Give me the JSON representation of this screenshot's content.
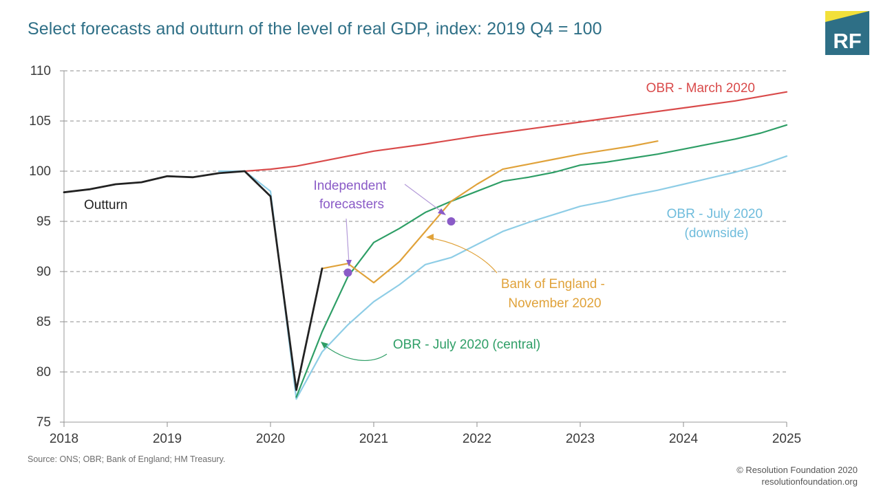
{
  "header": {
    "title": "Select forecasts and outturn of the level of real GDP, index: 2019 Q4 = 100",
    "logo_text": "RF"
  },
  "footer": {
    "source": "Source: ONS; OBR; Bank of England; HM Treasury.",
    "copyright_line1": "© Resolution Foundation 2020",
    "copyright_line2": "resolutionfoundation.org"
  },
  "colors": {
    "title": "#2e6f86",
    "logo_bg": "#2e6f86",
    "logo_accent": "#f2e03a"
  },
  "chart_data": {
    "type": "line",
    "title": "Select forecasts and outturn of the level of real GDP, index: 2019 Q4 = 100",
    "xlabel": "",
    "ylabel": "",
    "xlim": [
      2018,
      2025
    ],
    "ylim": [
      75,
      110
    ],
    "x_ticks": [
      "2018",
      "2019",
      "2020",
      "2021",
      "2022",
      "2023",
      "2024",
      "2025"
    ],
    "y_ticks": [
      "75",
      "80",
      "85",
      "90",
      "95",
      "100",
      "105",
      "110"
    ],
    "grid": "horizontal-dashed",
    "legend": "none (direct labels)",
    "series": [
      {
        "key": "obr-march",
        "name": "OBR - March 2020",
        "color": "#d94a4a",
        "points": [
          [
            2019.75,
            100
          ],
          [
            2020,
            100.2
          ],
          [
            2020.25,
            100.5
          ],
          [
            2020.5,
            101
          ],
          [
            2020.75,
            101.5
          ],
          [
            2021,
            102
          ],
          [
            2021.5,
            102.7
          ],
          [
            2022,
            103.5
          ],
          [
            2022.5,
            104.2
          ],
          [
            2023,
            104.9
          ],
          [
            2023.5,
            105.6
          ],
          [
            2024,
            106.3
          ],
          [
            2024.5,
            107
          ],
          [
            2025,
            107.9
          ]
        ]
      },
      {
        "key": "obr-july-downside",
        "name": "OBR - July 2020\n(downside)",
        "color": "#8ecde6",
        "points": [
          [
            2019.5,
            100
          ],
          [
            2019.75,
            100
          ],
          [
            2020,
            98
          ],
          [
            2020.25,
            77.3
          ],
          [
            2020.5,
            82
          ],
          [
            2020.75,
            84.7
          ],
          [
            2021,
            87
          ],
          [
            2021.25,
            88.7
          ],
          [
            2021.5,
            90.7
          ],
          [
            2021.75,
            91.4
          ],
          [
            2022,
            92.7
          ],
          [
            2022.25,
            94
          ],
          [
            2022.5,
            94.9
          ],
          [
            2022.75,
            95.7
          ],
          [
            2023,
            96.5
          ],
          [
            2023.25,
            97
          ],
          [
            2023.5,
            97.6
          ],
          [
            2023.75,
            98.1
          ],
          [
            2024,
            98.7
          ],
          [
            2024.25,
            99.3
          ],
          [
            2024.5,
            99.9
          ],
          [
            2024.75,
            100.6
          ],
          [
            2025,
            101.5
          ]
        ]
      },
      {
        "key": "obr-july-central",
        "name": "OBR - July 2020 (central)",
        "color": "#2e9e66",
        "points": [
          [
            2020.25,
            77.5
          ],
          [
            2020.5,
            84
          ],
          [
            2020.75,
            89.5
          ],
          [
            2021,
            92.9
          ],
          [
            2021.25,
            94.3
          ],
          [
            2021.5,
            95.9
          ],
          [
            2021.75,
            97
          ],
          [
            2022,
            98
          ],
          [
            2022.25,
            99
          ],
          [
            2022.5,
            99.4
          ],
          [
            2022.75,
            99.9
          ],
          [
            2023,
            100.6
          ],
          [
            2023.25,
            100.9
          ],
          [
            2023.5,
            101.3
          ],
          [
            2023.75,
            101.7
          ],
          [
            2024,
            102.2
          ],
          [
            2024.25,
            102.7
          ],
          [
            2024.5,
            103.2
          ],
          [
            2024.75,
            103.8
          ],
          [
            2025,
            104.6
          ]
        ]
      },
      {
        "key": "boe-nov",
        "name": "Bank of England -\nNovember 2020",
        "color": "#e0a23a",
        "points": [
          [
            2020.5,
            90.3
          ],
          [
            2020.75,
            90.8
          ],
          [
            2021,
            88.9
          ],
          [
            2021.25,
            91
          ],
          [
            2021.5,
            94
          ],
          [
            2021.75,
            97
          ],
          [
            2022,
            98.7
          ],
          [
            2022.25,
            100.2
          ],
          [
            2022.5,
            100.7
          ],
          [
            2022.75,
            101.2
          ],
          [
            2023,
            101.7
          ],
          [
            2023.25,
            102.1
          ],
          [
            2023.5,
            102.5
          ],
          [
            2023.75,
            103
          ]
        ]
      },
      {
        "key": "outturn",
        "name": "Outturn",
        "color": "#222222",
        "points": [
          [
            2018,
            97.9
          ],
          [
            2018.25,
            98.2
          ],
          [
            2018.5,
            98.7
          ],
          [
            2018.75,
            98.9
          ],
          [
            2019,
            99.5
          ],
          [
            2019.25,
            99.4
          ],
          [
            2019.5,
            99.8
          ],
          [
            2019.75,
            100
          ],
          [
            2020,
            97.5
          ],
          [
            2020.25,
            78.2
          ],
          [
            2020.5,
            90.3
          ]
        ]
      }
    ],
    "markers": [
      {
        "name": "independent-forecast-2020Q4",
        "x": 2020.75,
        "y": 89.9,
        "color": "#8a5bc7"
      },
      {
        "name": "independent-forecast-2021Q4",
        "x": 2021.75,
        "y": 95,
        "color": "#8a5bc7"
      }
    ],
    "annotations": {
      "independent": "Independent\nforecasters",
      "independent_color": "#8a5bc7"
    }
  }
}
